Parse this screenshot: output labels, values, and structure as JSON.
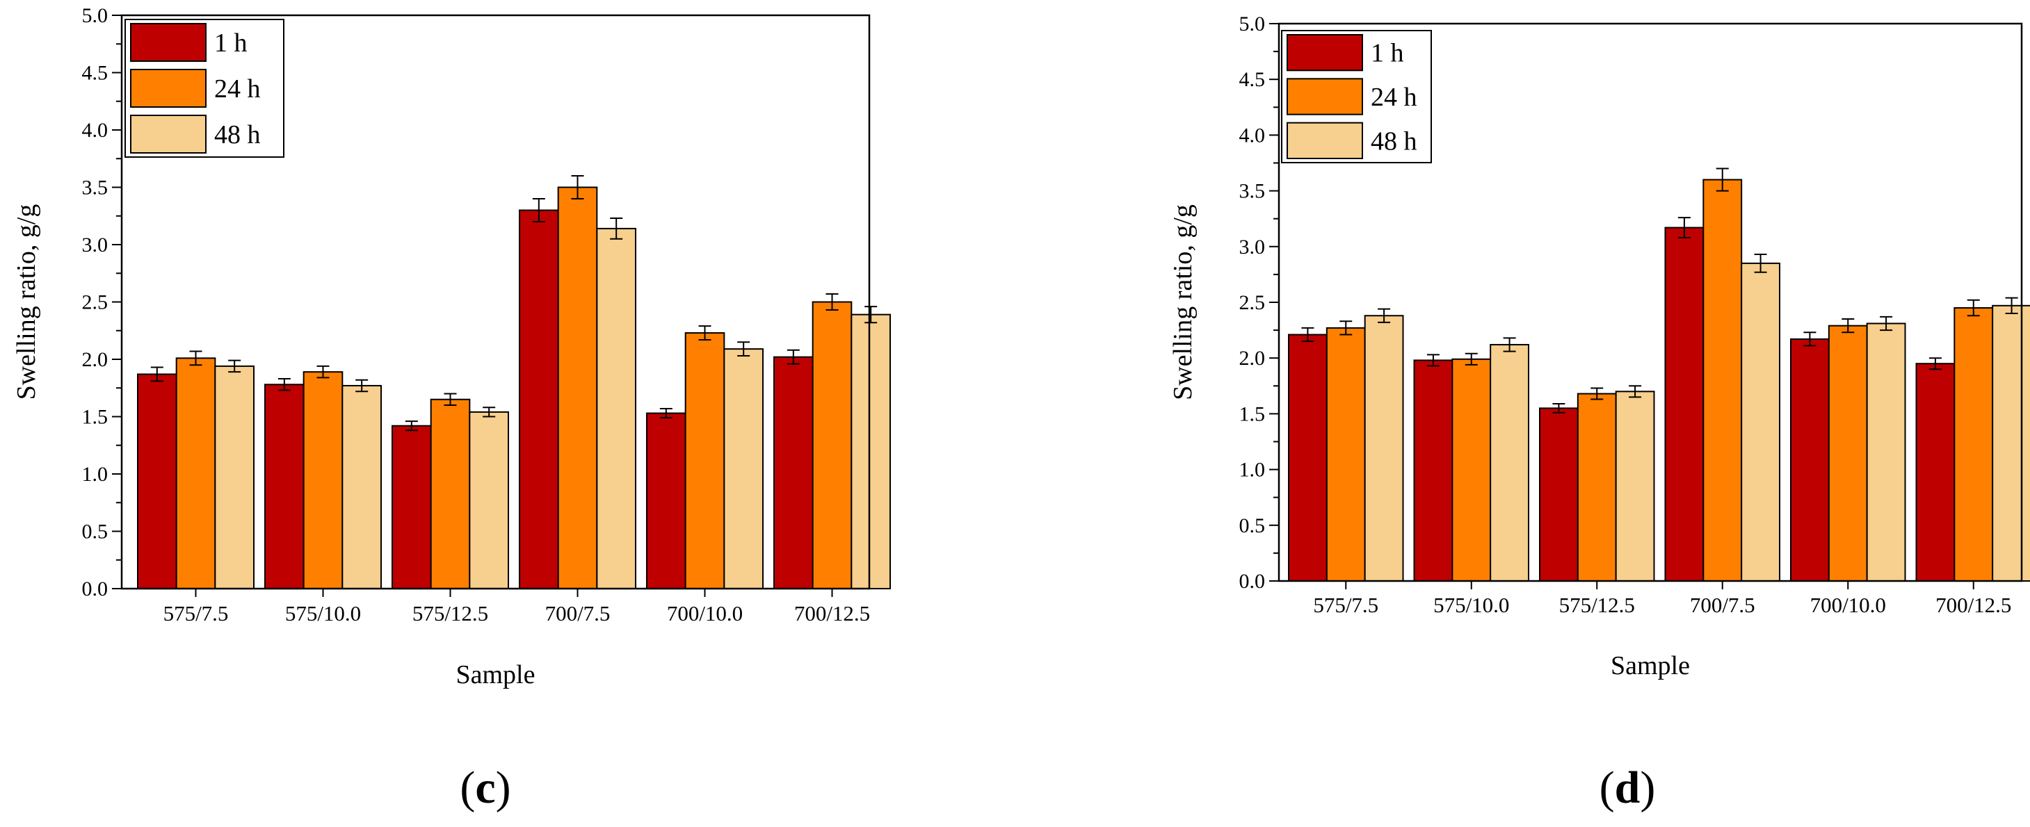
{
  "palette": {
    "h1": "#bf0000",
    "h24": "#ff8000",
    "h48": "#f7cf8e"
  },
  "chart_data": [
    {
      "type": "bar",
      "panel_open": "(",
      "panel_letter": "c",
      "panel_close": ")",
      "categories": [
        "575/7.5",
        "575/10.0",
        "575/12.5",
        "700/7.5",
        "700/10.0",
        "700/12.5"
      ],
      "series": [
        {
          "name": "1 h",
          "values": [
            1.87,
            1.78,
            1.42,
            3.3,
            1.53,
            2.02
          ],
          "errors": [
            0.06,
            0.05,
            0.04,
            0.1,
            0.04,
            0.06
          ]
        },
        {
          "name": "24 h",
          "values": [
            2.01,
            1.89,
            1.65,
            3.5,
            2.23,
            2.5
          ],
          "errors": [
            0.06,
            0.05,
            0.05,
            0.1,
            0.06,
            0.07
          ]
        },
        {
          "name": "48 h",
          "values": [
            1.94,
            1.77,
            1.54,
            3.14,
            2.09,
            2.39
          ],
          "errors": [
            0.05,
            0.05,
            0.04,
            0.09,
            0.06,
            0.07
          ]
        }
      ],
      "xlabel": "Sample",
      "ylabel": "Swelling ratio, g/g",
      "ylim": [
        0,
        5
      ],
      "yticks": [
        "0.0",
        "0.5",
        "1.0",
        "1.5",
        "2.0",
        "2.5",
        "3.0",
        "3.5",
        "4.0",
        "4.5",
        "5.0"
      ],
      "legend_position": "top-left",
      "grid": false
    },
    {
      "type": "bar",
      "panel_open": "(",
      "panel_letter": "d",
      "panel_close": ")",
      "categories": [
        "575/7.5",
        "575/10.0",
        "575/12.5",
        "700/7.5",
        "700/10.0",
        "700/12.5"
      ],
      "series": [
        {
          "name": "1 h",
          "values": [
            2.21,
            1.98,
            1.55,
            3.17,
            2.17,
            1.95
          ],
          "errors": [
            0.06,
            0.05,
            0.04,
            0.09,
            0.06,
            0.05
          ]
        },
        {
          "name": "24 h",
          "values": [
            2.27,
            1.99,
            1.68,
            3.6,
            2.29,
            2.45
          ],
          "errors": [
            0.06,
            0.05,
            0.05,
            0.1,
            0.06,
            0.07
          ]
        },
        {
          "name": "48 h",
          "values": [
            2.38,
            2.12,
            1.7,
            2.85,
            2.31,
            2.47
          ],
          "errors": [
            0.06,
            0.06,
            0.05,
            0.08,
            0.06,
            0.07
          ]
        }
      ],
      "xlabel": "Sample",
      "ylabel": "Swelling ratio, g/g",
      "ylim": [
        0,
        5
      ],
      "yticks": [
        "0.0",
        "0.5",
        "1.0",
        "1.5",
        "2.0",
        "2.5",
        "3.0",
        "3.5",
        "4.0",
        "4.5",
        "5.0"
      ],
      "legend_position": "top-left",
      "grid": false
    }
  ]
}
